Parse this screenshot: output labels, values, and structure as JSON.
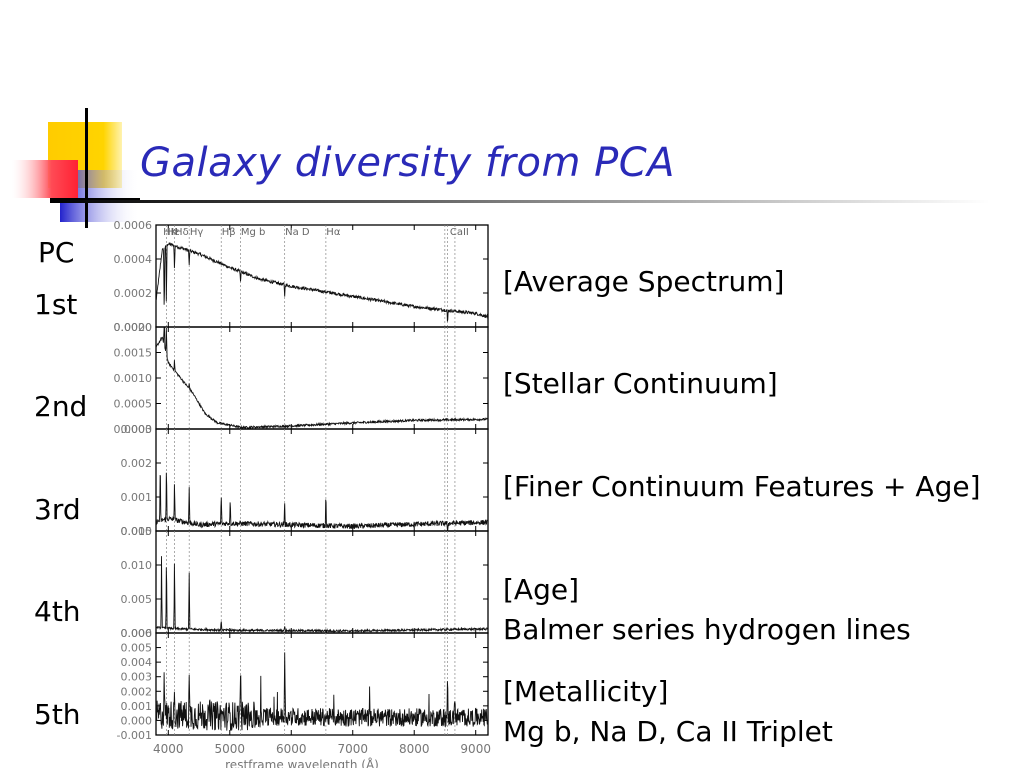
{
  "slide": {
    "title": "Galaxy diversity from PCA",
    "pc_label": "PC",
    "rows": [
      {
        "label": "1st",
        "desc": [
          "[Average Spectrum]"
        ]
      },
      {
        "label": "2nd",
        "desc": [
          "[Stellar Continuum]"
        ]
      },
      {
        "label": "3rd",
        "desc": [
          "[Finer Continuum Features + Age]"
        ]
      },
      {
        "label": "4th",
        "desc": [
          "[Age]",
          "Balmer series hydrogen lines"
        ]
      },
      {
        "label": "5th",
        "desc": [
          "[Metallicity]",
          "Mg b, Na D, Ca II Triplet"
        ]
      }
    ],
    "colors": {
      "title": "#2a2ab8",
      "logo_yellow": "#ffcc00",
      "logo_blue": "#2222cc",
      "logo_red": "#ff3344"
    }
  },
  "chart_data": {
    "type": "line",
    "xlabel": "restframe wavelength (Å)",
    "xlim": [
      3800,
      9200
    ],
    "x_ticks": [
      4000,
      5000,
      6000,
      7000,
      8000,
      9000
    ],
    "line_markers": [
      {
        "label": "Hε",
        "wavelength": 3970
      },
      {
        "label": "Hδ",
        "wavelength": 4101
      },
      {
        "label": "Hγ",
        "wavelength": 4340
      },
      {
        "label": "Hβ",
        "wavelength": 4861
      },
      {
        "label": "Mg b",
        "wavelength": 5175
      },
      {
        "label": "Na D",
        "wavelength": 5893
      },
      {
        "label": "Hα",
        "wavelength": 6563
      },
      {
        "label": "CaII",
        "wavelength": 8498
      },
      {
        "label": "CaII",
        "wavelength": 8542
      },
      {
        "label": "CaII",
        "wavelength": 8662
      }
    ],
    "top_labels": [
      "HK",
      "Hε",
      "Hδ",
      "Hγ",
      "Hβ",
      "Mg b",
      "Na D",
      "Hα",
      "CaII"
    ],
    "panels": [
      {
        "name": "1st",
        "ylim": [
          0,
          0.0006
        ],
        "yticks": [
          "0.0006",
          "0.0004",
          "0.0002",
          "0.0000"
        ],
        "profile": [
          [
            3800,
            0.00015
          ],
          [
            3900,
            0.00045
          ],
          [
            4000,
            0.00049
          ],
          [
            4500,
            0.00043
          ],
          [
            5000,
            0.00035
          ],
          [
            5500,
            0.00028
          ],
          [
            6000,
            0.00024
          ],
          [
            7000,
            0.00018
          ],
          [
            8000,
            0.00012
          ],
          [
            9000,
            8e-05
          ],
          [
            9200,
            6e-05
          ]
        ]
      },
      {
        "name": "2nd",
        "ylim": [
          0,
          0.002
        ],
        "yticks": [
          "0.0020",
          "0.0015",
          "0.0010",
          "0.0005",
          "0.0000"
        ],
        "profile": [
          [
            3800,
            0.0016
          ],
          [
            3900,
            0.0018
          ],
          [
            4000,
            0.0013
          ],
          [
            4200,
            0.001
          ],
          [
            4400,
            0.0007
          ],
          [
            4600,
            0.0003
          ],
          [
            4800,
            0.00012
          ],
          [
            5200,
            3e-05
          ],
          [
            6000,
            6e-05
          ],
          [
            7000,
            0.00012
          ],
          [
            8000,
            0.00017
          ],
          [
            9200,
            0.00019
          ]
        ]
      },
      {
        "name": "3rd",
        "ylim": [
          0,
          0.0033
        ],
        "yticks": [
          "0.003",
          "0.002",
          "0.001",
          "0.000"
        ],
        "profile": [
          [
            3800,
            0.0003
          ],
          [
            4000,
            0.0004
          ],
          [
            4500,
            0.0002
          ],
          [
            5000,
            0.00025
          ],
          [
            6000,
            0.0002
          ],
          [
            7000,
            0.00015
          ],
          [
            8000,
            0.00022
          ],
          [
            9200,
            0.00028
          ]
        ]
      },
      {
        "name": "4th",
        "ylim": [
          0,
          0.015
        ],
        "yticks": [
          "0.015",
          "0.010",
          "0.005",
          "0.000"
        ],
        "profile": [
          [
            3800,
            0.0008
          ],
          [
            4200,
            0.0006
          ],
          [
            5000,
            0.0004
          ],
          [
            7000,
            0.0003
          ],
          [
            9200,
            0.0006
          ]
        ]
      },
      {
        "name": "5th",
        "ylim": [
          -0.001,
          0.006
        ],
        "yticks": [
          "0.006",
          "0.005",
          "0.004",
          "0.003",
          "0.002",
          "0.001",
          "0.000",
          "-0.001"
        ],
        "profile": [
          [
            3800,
            0.0004
          ],
          [
            5000,
            0.0003
          ],
          [
            7000,
            0.0002
          ],
          [
            9200,
            0.0002
          ]
        ]
      }
    ]
  }
}
